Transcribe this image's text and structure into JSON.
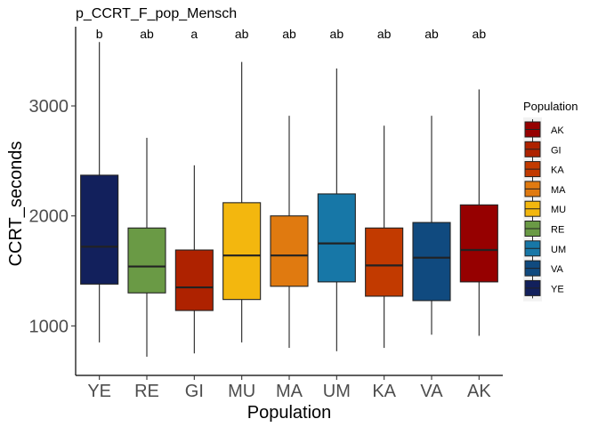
{
  "chart_data": {
    "type": "box",
    "title": "p_CCRT_F_pop_Mensch",
    "xlabel": "Population",
    "ylabel": "CCRT_seconds",
    "ylim": [
      550,
      3720
    ],
    "yticks": [
      1000,
      2000,
      3000
    ],
    "grid": false,
    "legend": {
      "title": "Population",
      "placement": "right",
      "entries": [
        {
          "label": "AK",
          "color": "#960000"
        },
        {
          "label": "GI",
          "color": "#AE2200"
        },
        {
          "label": "KA",
          "color": "#C23A00"
        },
        {
          "label": "MA",
          "color": "#E07A10"
        },
        {
          "label": "MU",
          "color": "#F3B70E"
        },
        {
          "label": "RE",
          "color": "#6A9A45"
        },
        {
          "label": "UM",
          "color": "#1777A7"
        },
        {
          "label": "VA",
          "color": "#104A7F"
        },
        {
          "label": "YE",
          "color": "#12205C"
        }
      ]
    },
    "categories": [
      "YE",
      "RE",
      "GI",
      "MU",
      "MA",
      "UM",
      "KA",
      "VA",
      "AK"
    ],
    "boxes": [
      {
        "category": "YE",
        "min": 850,
        "q1": 1380,
        "median": 1720,
        "q3": 2370,
        "max": 3580,
        "sig": "b",
        "color": "#12205C"
      },
      {
        "category": "RE",
        "min": 720,
        "q1": 1300,
        "median": 1540,
        "q3": 1890,
        "max": 2710,
        "sig": "ab",
        "color": "#6A9A45"
      },
      {
        "category": "GI",
        "min": 750,
        "q1": 1140,
        "median": 1350,
        "q3": 1690,
        "max": 2460,
        "sig": "a",
        "color": "#AE2200"
      },
      {
        "category": "MU",
        "min": 850,
        "q1": 1240,
        "median": 1640,
        "q3": 2120,
        "max": 3400,
        "sig": "ab",
        "color": "#F3B70E"
      },
      {
        "category": "MA",
        "min": 800,
        "q1": 1360,
        "median": 1640,
        "q3": 2000,
        "max": 2910,
        "sig": "ab",
        "color": "#E07A10"
      },
      {
        "category": "UM",
        "min": 770,
        "q1": 1400,
        "median": 1750,
        "q3": 2200,
        "max": 3340,
        "sig": "ab",
        "color": "#1777A7"
      },
      {
        "category": "KA",
        "min": 800,
        "q1": 1270,
        "median": 1550,
        "q3": 1890,
        "max": 2820,
        "sig": "ab",
        "color": "#C23A00"
      },
      {
        "category": "VA",
        "min": 920,
        "q1": 1230,
        "median": 1620,
        "q3": 1940,
        "max": 2910,
        "sig": "ab",
        "color": "#104A7F"
      },
      {
        "category": "AK",
        "min": 910,
        "q1": 1400,
        "median": 1690,
        "q3": 2100,
        "max": 3150,
        "sig": "ab",
        "color": "#960000"
      }
    ]
  }
}
